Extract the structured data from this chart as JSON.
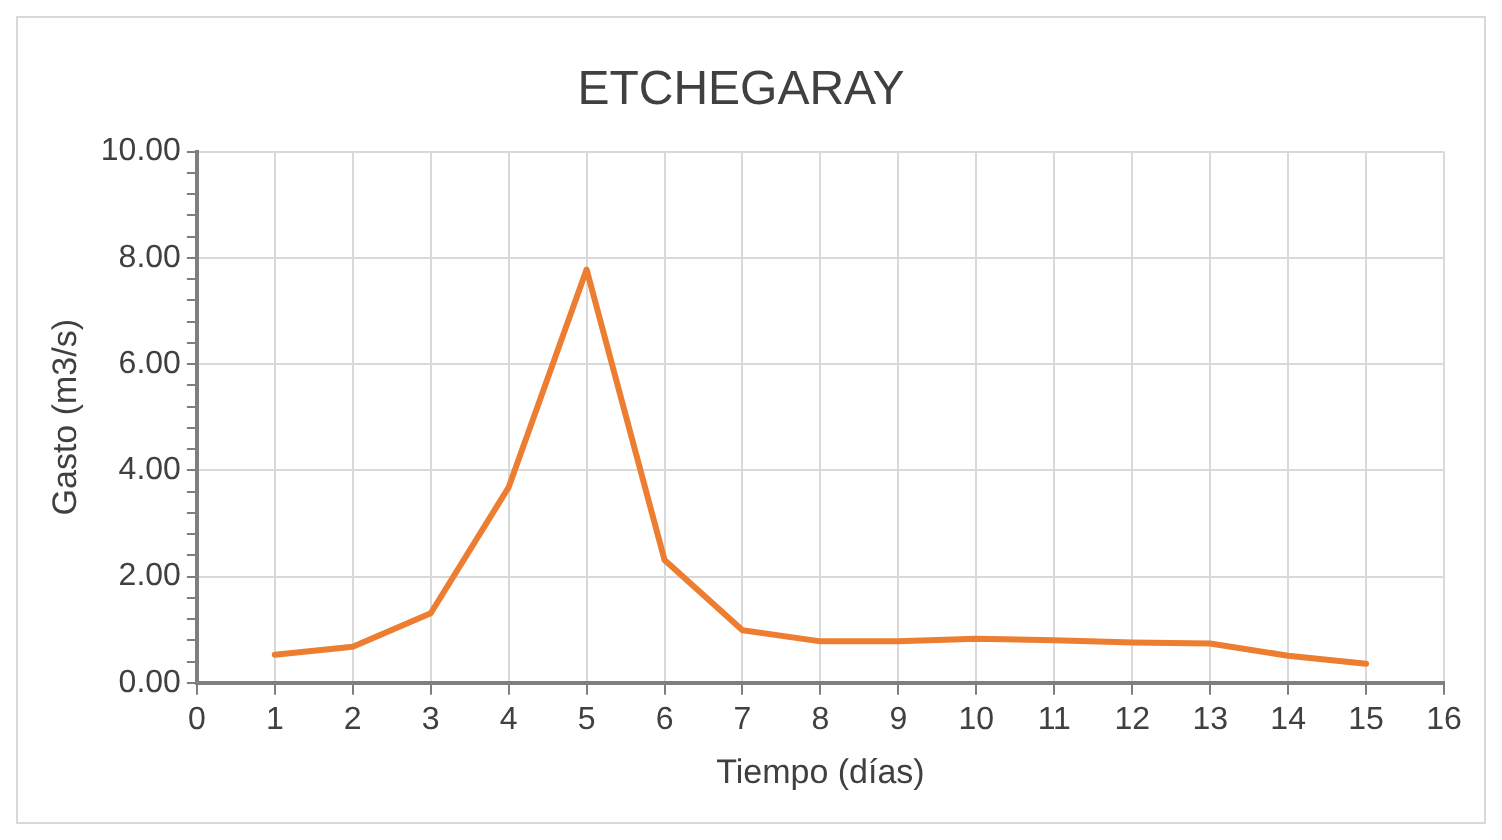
{
  "chart_data": {
    "type": "line",
    "title": "ETCHEGARAY",
    "xlabel": "Tiempo (días)",
    "ylabel": "Gasto (m3/s)",
    "x": [
      1,
      2,
      3,
      4,
      5,
      6,
      7,
      8,
      9,
      10,
      11,
      12,
      13,
      14,
      15
    ],
    "series": [
      {
        "color": "#ed7d31",
        "values": [
          0.53,
          0.68,
          1.31,
          3.68,
          7.78,
          2.31,
          0.99,
          0.78,
          0.78,
          0.83,
          0.8,
          0.76,
          0.74,
          0.51,
          0.36
        ]
      }
    ],
    "xlim": [
      0,
      16
    ],
    "xticks": [
      0,
      1,
      2,
      3,
      4,
      5,
      6,
      7,
      8,
      9,
      10,
      11,
      12,
      13,
      14,
      15,
      16
    ],
    "ylim": [
      0,
      10
    ],
    "yticks": [
      {
        "value": 0,
        "label": "0.00"
      },
      {
        "value": 0.4,
        "label": null
      },
      {
        "value": 0.8,
        "label": null
      },
      {
        "value": 1.2,
        "label": null
      },
      {
        "value": 1.6,
        "label": null
      },
      {
        "value": 2,
        "label": "2.00"
      },
      {
        "value": 2.4,
        "label": null
      },
      {
        "value": 2.8,
        "label": null
      },
      {
        "value": 3.2,
        "label": null
      },
      {
        "value": 3.6,
        "label": null
      },
      {
        "value": 4,
        "label": "4.00"
      },
      {
        "value": 4.4,
        "label": null
      },
      {
        "value": 4.8,
        "label": null
      },
      {
        "value": 5.2,
        "label": null
      },
      {
        "value": 5.6,
        "label": null
      },
      {
        "value": 6,
        "label": "6.00"
      },
      {
        "value": 6.4,
        "label": null
      },
      {
        "value": 6.8,
        "label": null
      },
      {
        "value": 7.2,
        "label": null
      },
      {
        "value": 7.6,
        "label": null
      },
      {
        "value": 8,
        "label": "8.00"
      },
      {
        "value": 8.4,
        "label": null
      },
      {
        "value": 8.8,
        "label": null
      },
      {
        "value": 9.2,
        "label": null
      },
      {
        "value": 9.6,
        "label": null
      },
      {
        "value": 10,
        "label": "10.00"
      }
    ],
    "grid": true,
    "marker": "none",
    "line_style": "solid",
    "legend": false
  }
}
